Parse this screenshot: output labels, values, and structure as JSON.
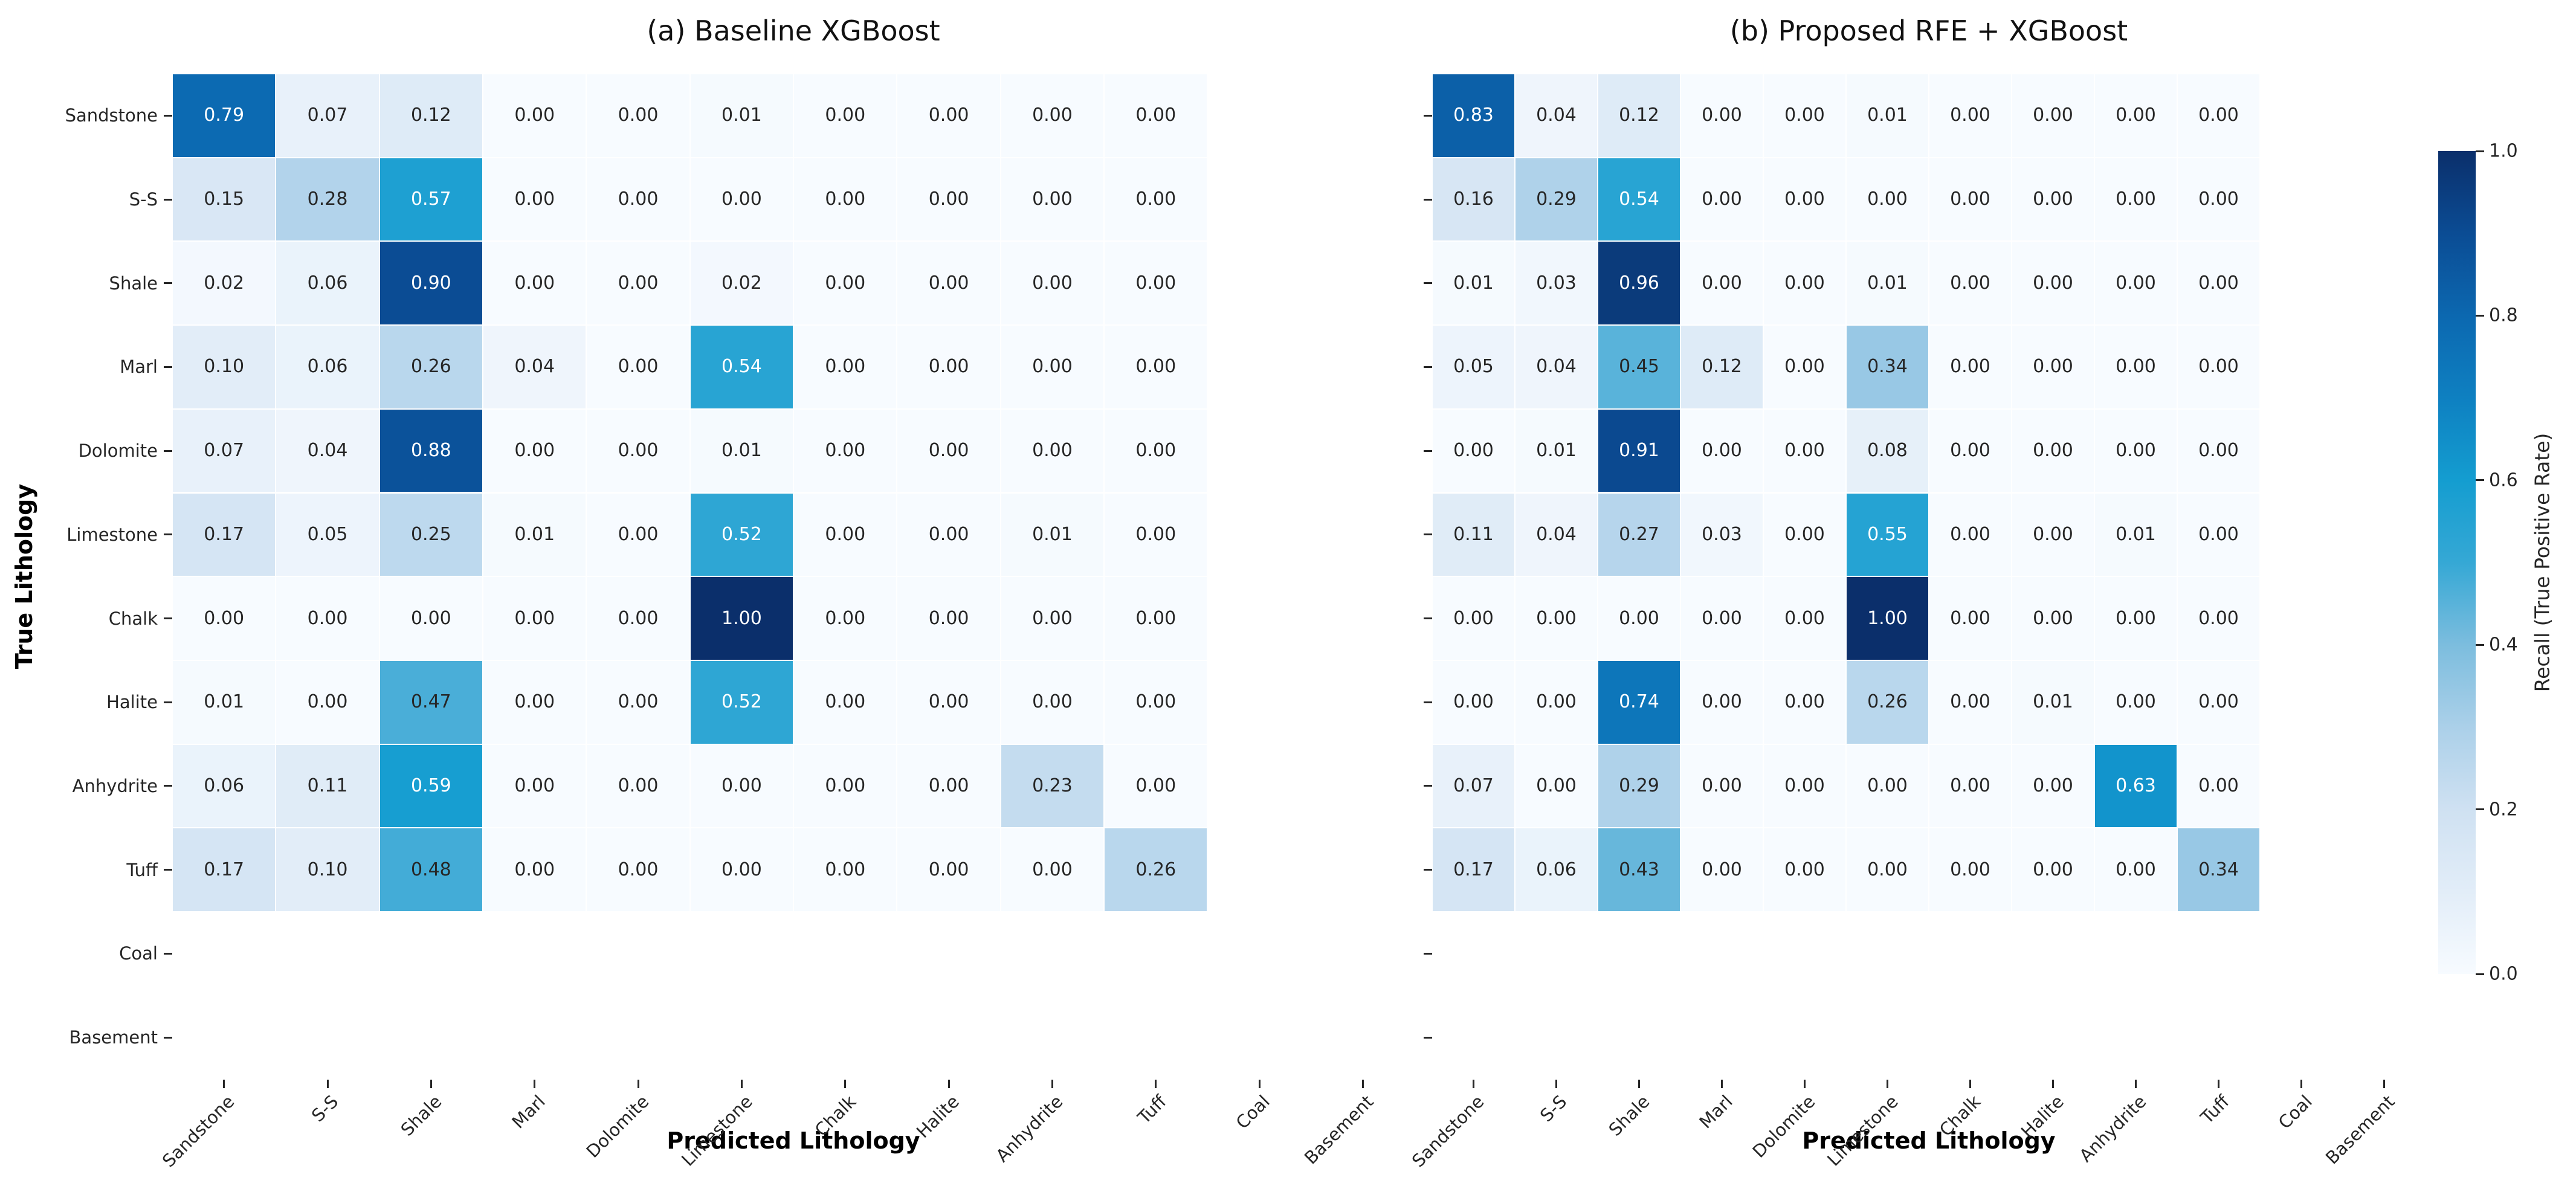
{
  "figure": {
    "background": "#ffffff",
    "text_color": "#262626",
    "colorbar": {
      "label": "Recall (True Positive Rate)",
      "ticks": [
        "1.0",
        "0.8",
        "0.6",
        "0.4",
        "0.2",
        "0.0"
      ],
      "vmin": 0.0,
      "vmax": 1.0,
      "position": "right",
      "colormap_name": "Blues",
      "colormap_stops": [
        "#f7fbff",
        "#e2edf8",
        "#cfe1f2",
        "#abd0e9",
        "#7cbdde",
        "#35a8d5",
        "#149dd0",
        "#0e80c1",
        "#0c68b0",
        "#0b4c94",
        "#0b2f6b"
      ]
    },
    "annotation": {
      "precision": 2,
      "dark_text_color": "#262626",
      "light_text_color": "#ffffff",
      "white_text_threshold": 0.5
    }
  },
  "chart_data": [
    {
      "type": "heatmap",
      "title": "(a) Baseline XGBoost",
      "xlabel": "Predicted Lithology",
      "ylabel": "True Lithology",
      "x_categories": [
        "Sandstone",
        "S-S",
        "Shale",
        "Marl",
        "Dolomite",
        "Limestone",
        "Chalk",
        "Halite",
        "Anhydrite",
        "Tuff",
        "Coal",
        "Basement"
      ],
      "y_categories": [
        "Sandstone",
        "S-S",
        "Shale",
        "Marl",
        "Dolomite",
        "Limestone",
        "Chalk",
        "Halite",
        "Anhydrite",
        "Tuff",
        "Coal",
        "Basement"
      ],
      "show_y_tick_labels": true,
      "grid": false,
      "values": [
        [
          0.79,
          0.07,
          0.12,
          0.0,
          0.0,
          0.01,
          0.0,
          0.0,
          0.0,
          0.0,
          null,
          null
        ],
        [
          0.15,
          0.28,
          0.57,
          0.0,
          0.0,
          0.0,
          0.0,
          0.0,
          0.0,
          0.0,
          null,
          null
        ],
        [
          0.02,
          0.06,
          0.9,
          0.0,
          0.0,
          0.02,
          0.0,
          0.0,
          0.0,
          0.0,
          null,
          null
        ],
        [
          0.1,
          0.06,
          0.26,
          0.04,
          0.0,
          0.54,
          0.0,
          0.0,
          0.0,
          0.0,
          null,
          null
        ],
        [
          0.07,
          0.04,
          0.88,
          0.0,
          0.0,
          0.01,
          0.0,
          0.0,
          0.0,
          0.0,
          null,
          null
        ],
        [
          0.17,
          0.05,
          0.25,
          0.01,
          0.0,
          0.52,
          0.0,
          0.0,
          0.01,
          0.0,
          null,
          null
        ],
        [
          0.0,
          0.0,
          0.0,
          0.0,
          0.0,
          1.0,
          0.0,
          0.0,
          0.0,
          0.0,
          null,
          null
        ],
        [
          0.01,
          0.0,
          0.47,
          0.0,
          0.0,
          0.52,
          0.0,
          0.0,
          0.0,
          0.0,
          null,
          null
        ],
        [
          0.06,
          0.11,
          0.59,
          0.0,
          0.0,
          0.0,
          0.0,
          0.0,
          0.23,
          0.0,
          null,
          null
        ],
        [
          0.17,
          0.1,
          0.48,
          0.0,
          0.0,
          0.0,
          0.0,
          0.0,
          0.0,
          0.26,
          null,
          null
        ],
        [
          null,
          null,
          null,
          null,
          null,
          null,
          null,
          null,
          null,
          null,
          null,
          null
        ],
        [
          null,
          null,
          null,
          null,
          null,
          null,
          null,
          null,
          null,
          null,
          null,
          null
        ]
      ]
    },
    {
      "type": "heatmap",
      "title": "(b) Proposed RFE + XGBoost",
      "xlabel": "Predicted Lithology",
      "ylabel": "True Lithology",
      "x_categories": [
        "Sandstone",
        "S-S",
        "Shale",
        "Marl",
        "Dolomite",
        "Limestone",
        "Chalk",
        "Halite",
        "Anhydrite",
        "Tuff",
        "Coal",
        "Basement"
      ],
      "y_categories": [
        "Sandstone",
        "S-S",
        "Shale",
        "Marl",
        "Dolomite",
        "Limestone",
        "Chalk",
        "Halite",
        "Anhydrite",
        "Tuff",
        "Coal",
        "Basement"
      ],
      "show_y_tick_labels": false,
      "grid": false,
      "values": [
        [
          0.83,
          0.04,
          0.12,
          0.0,
          0.0,
          0.01,
          0.0,
          0.0,
          0.0,
          0.0,
          null,
          null
        ],
        [
          0.16,
          0.29,
          0.54,
          0.0,
          0.0,
          0.0,
          0.0,
          0.0,
          0.0,
          0.0,
          null,
          null
        ],
        [
          0.01,
          0.03,
          0.96,
          0.0,
          0.0,
          0.01,
          0.0,
          0.0,
          0.0,
          0.0,
          null,
          null
        ],
        [
          0.05,
          0.04,
          0.45,
          0.12,
          0.0,
          0.34,
          0.0,
          0.0,
          0.0,
          0.0,
          null,
          null
        ],
        [
          0.0,
          0.01,
          0.91,
          0.0,
          0.0,
          0.08,
          0.0,
          0.0,
          0.0,
          0.0,
          null,
          null
        ],
        [
          0.11,
          0.04,
          0.27,
          0.03,
          0.0,
          0.55,
          0.0,
          0.0,
          0.01,
          0.0,
          null,
          null
        ],
        [
          0.0,
          0.0,
          0.0,
          0.0,
          0.0,
          1.0,
          0.0,
          0.0,
          0.0,
          0.0,
          null,
          null
        ],
        [
          0.0,
          0.0,
          0.74,
          0.0,
          0.0,
          0.26,
          0.0,
          0.01,
          0.0,
          0.0,
          null,
          null
        ],
        [
          0.07,
          0.0,
          0.29,
          0.0,
          0.0,
          0.0,
          0.0,
          0.0,
          0.63,
          0.0,
          null,
          null
        ],
        [
          0.17,
          0.06,
          0.43,
          0.0,
          0.0,
          0.0,
          0.0,
          0.0,
          0.0,
          0.34,
          null,
          null
        ],
        [
          null,
          null,
          null,
          null,
          null,
          null,
          null,
          null,
          null,
          null,
          null,
          null
        ],
        [
          null,
          null,
          null,
          null,
          null,
          null,
          null,
          null,
          null,
          null,
          null,
          null
        ]
      ]
    }
  ]
}
